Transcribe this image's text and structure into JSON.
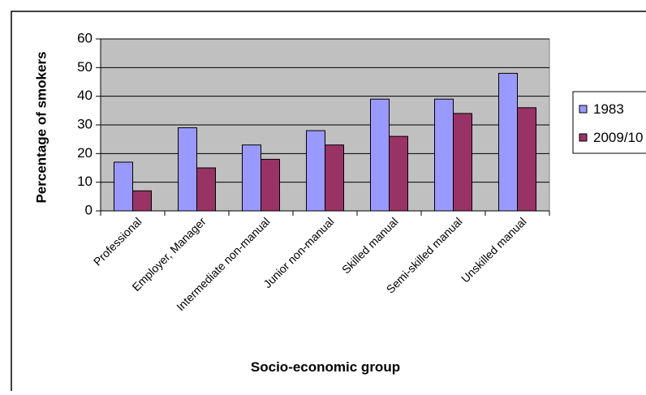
{
  "chart_data": {
    "type": "bar",
    "xlabel": "Socio-economic group",
    "ylabel": "Percentage of smokers",
    "ylim": [
      0,
      60
    ],
    "yticks": [
      0,
      10,
      20,
      30,
      40,
      50,
      60
    ],
    "grid": true,
    "legend_position": "right",
    "categories": [
      "Professional",
      "Employer, Manager",
      "Intermediate non-manual",
      "Junior non-manual",
      "Skilled manual",
      "Semi-skilled manual",
      "Unskilled manual"
    ],
    "series": [
      {
        "name": "1983",
        "values": [
          17,
          29,
          23,
          28,
          39,
          39,
          48
        ],
        "color": "#9999ff"
      },
      {
        "name": "2009/10",
        "values": [
          7,
          15,
          18,
          23,
          26,
          34,
          36
        ],
        "color": "#993366"
      }
    ],
    "plot_background": "#c0c0c0"
  }
}
